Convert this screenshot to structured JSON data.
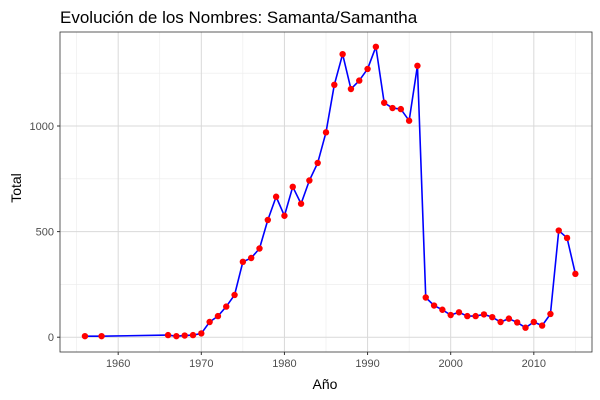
{
  "chart_data": {
    "type": "line",
    "title": "Evolución de los Nombres: Samanta/Samantha",
    "xlabel": "Año",
    "ylabel": "Total",
    "xlim": [
      1953,
      2017
    ],
    "ylim": [
      -70,
      1445
    ],
    "xticks": [
      1960,
      1970,
      1980,
      1990,
      2000,
      2010
    ],
    "yticks": [
      0,
      500,
      1000
    ],
    "grid": true,
    "line_color": "#0000ff",
    "point_color": "#ff0000",
    "series": [
      {
        "x": [
          1956,
          1958,
          1966,
          1967,
          1968,
          1969,
          1970,
          1971,
          1972,
          1973,
          1974,
          1975,
          1976,
          1977,
          1978,
          1979,
          1980,
          1981,
          1982,
          1983,
          1984,
          1985,
          1986,
          1987,
          1988,
          1989,
          1990,
          1991,
          1992,
          1993,
          1994,
          1995,
          1996,
          1997,
          1998,
          1999,
          2000,
          2001,
          2002,
          2003,
          2004,
          2005,
          2006,
          2007,
          2008,
          2009,
          2010,
          2011,
          2012,
          2013,
          2014,
          2015
        ],
        "y": [
          5,
          5,
          10,
          5,
          8,
          10,
          18,
          72,
          100,
          145,
          200,
          357,
          375,
          420,
          555,
          665,
          575,
          712,
          632,
          742,
          825,
          970,
          1195,
          1340,
          1175,
          1215,
          1270,
          1375,
          1110,
          1085,
          1080,
          1025,
          1285,
          188,
          150,
          130,
          105,
          118,
          100,
          100,
          108,
          95,
          72,
          88,
          70,
          45,
          72,
          55,
          110,
          505,
          470,
          300
        ]
      }
    ]
  }
}
